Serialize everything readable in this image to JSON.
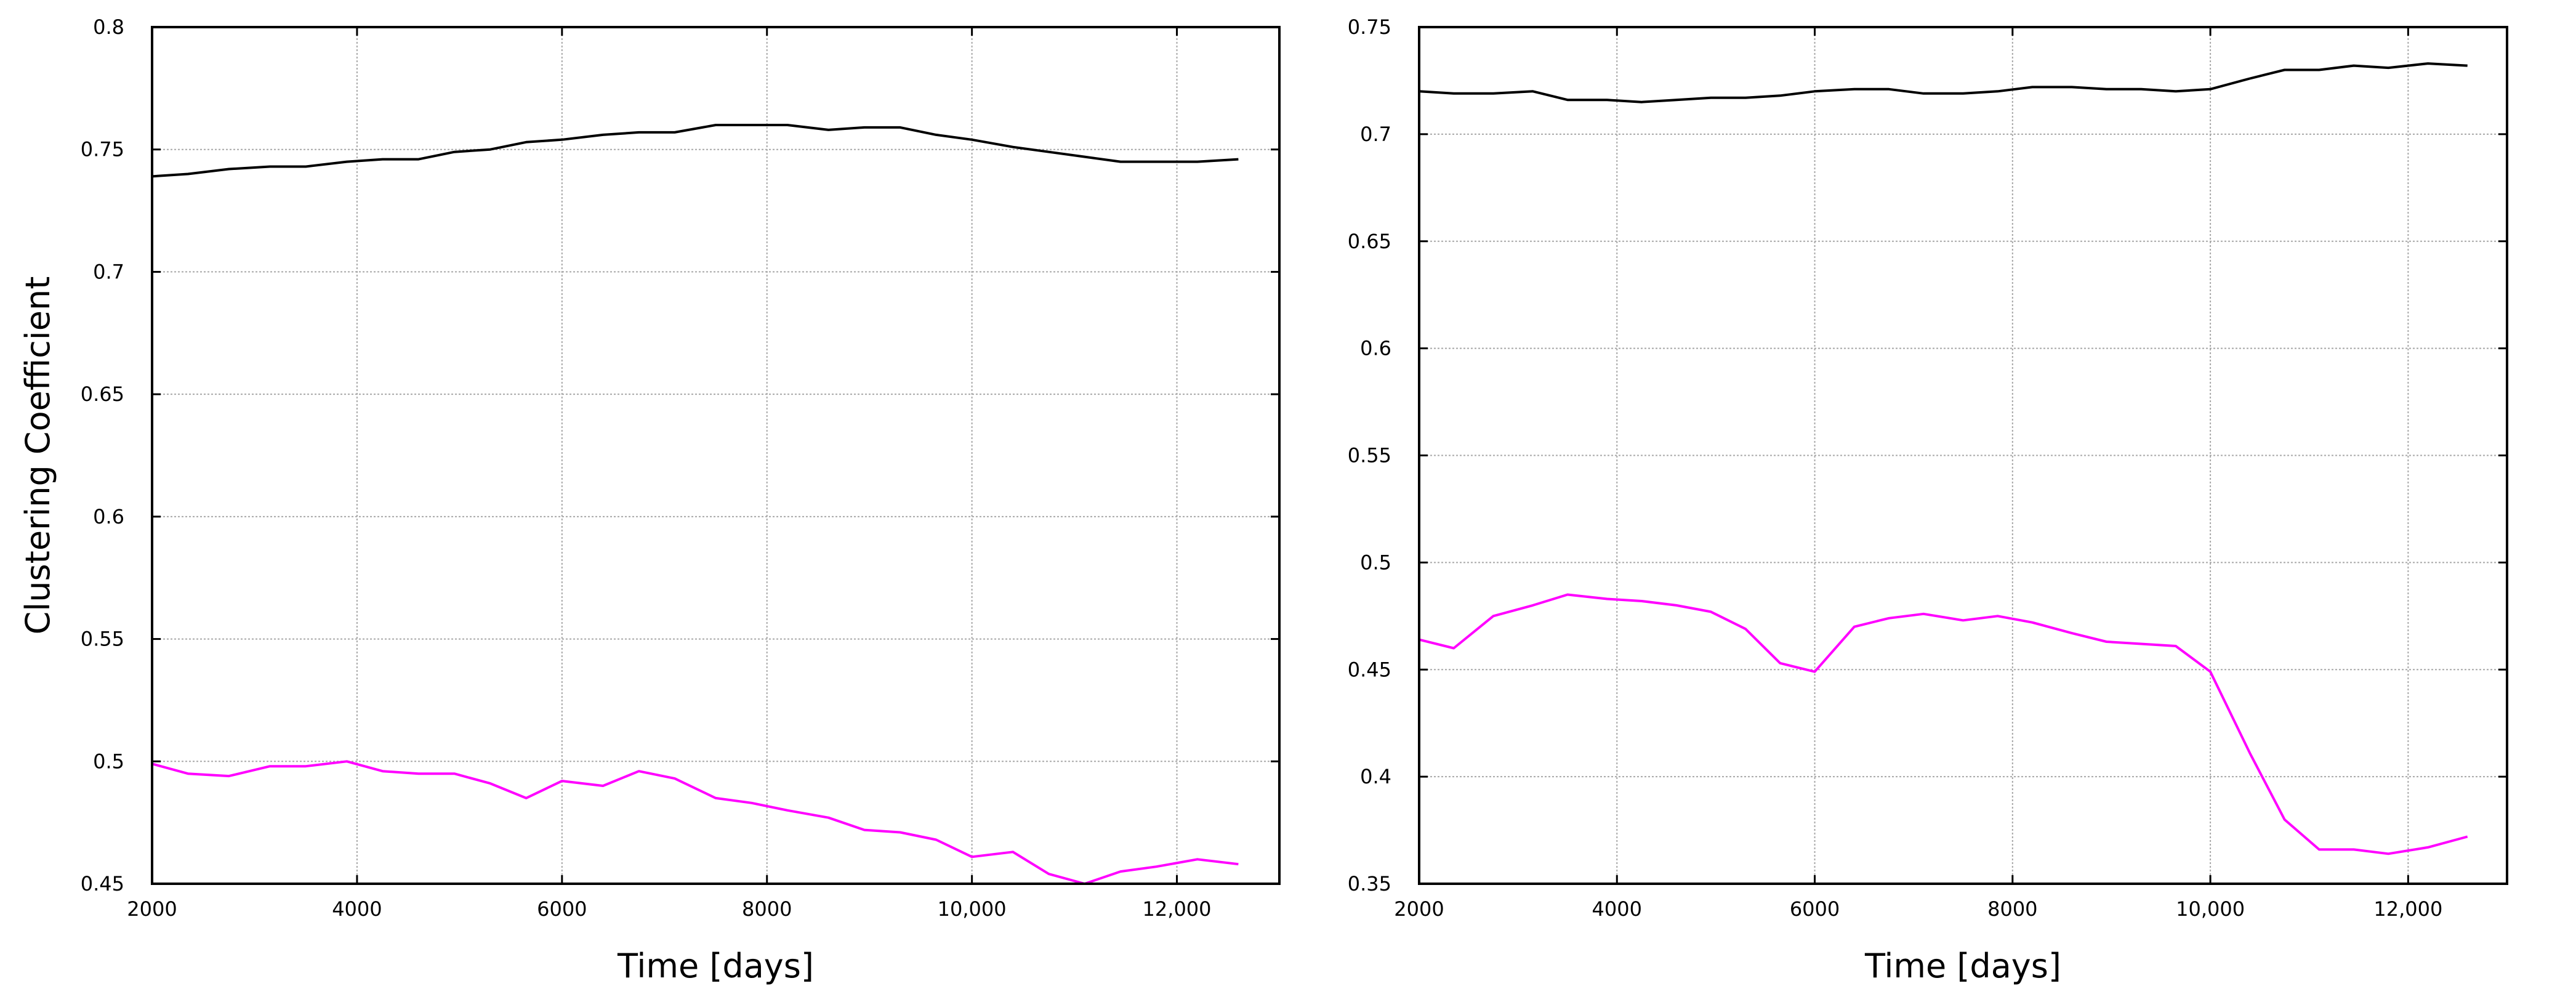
{
  "chart_data": [
    {
      "type": "line",
      "title": "",
      "xlabel": "Time [days]",
      "ylabel": "Clustering Coefficient",
      "xlim": [
        2000,
        13000
      ],
      "ylim": [
        0.45,
        0.8
      ],
      "xticks": [
        2000,
        4000,
        6000,
        8000,
        10000,
        12000
      ],
      "xtick_labels": [
        "2000",
        "4000",
        "6000",
        "8000",
        "10,000",
        "12,000"
      ],
      "yticks": [
        0.45,
        0.5,
        0.55,
        0.6,
        0.65,
        0.7,
        0.75,
        0.8
      ],
      "ytick_labels": [
        "0.45",
        "0.5",
        "0.55",
        "0.6",
        "0.65",
        "0.7",
        "0.75",
        "0.8"
      ],
      "grid": true,
      "legend": "none",
      "series": [
        {
          "color": "#000000",
          "x": [
            2000,
            2350,
            2750,
            3150,
            3500,
            3900,
            4250,
            4600,
            4950,
            5300,
            5650,
            6000,
            6400,
            6750,
            7100,
            7500,
            7850,
            8200,
            8600,
            8950,
            9300,
            9650,
            10000,
            10400,
            10750,
            11100,
            11450,
            11800,
            12200,
            12600
          ],
          "y": [
            0.739,
            0.74,
            0.742,
            0.743,
            0.743,
            0.745,
            0.746,
            0.746,
            0.749,
            0.75,
            0.753,
            0.754,
            0.756,
            0.757,
            0.757,
            0.76,
            0.76,
            0.76,
            0.758,
            0.759,
            0.759,
            0.756,
            0.754,
            0.751,
            0.749,
            0.747,
            0.745,
            0.745,
            0.745,
            0.746
          ]
        },
        {
          "color": "#ff00ff",
          "x": [
            2000,
            2350,
            2750,
            3150,
            3500,
            3900,
            4250,
            4600,
            4950,
            5300,
            5650,
            6000,
            6400,
            6750,
            7100,
            7500,
            7850,
            8200,
            8600,
            8950,
            9300,
            9650,
            10000,
            10400,
            10750,
            11100,
            11450,
            11800,
            12200,
            12600
          ],
          "y": [
            0.499,
            0.495,
            0.494,
            0.498,
            0.498,
            0.5,
            0.496,
            0.495,
            0.495,
            0.491,
            0.485,
            0.492,
            0.49,
            0.496,
            0.493,
            0.485,
            0.483,
            0.48,
            0.477,
            0.472,
            0.471,
            0.468,
            0.461,
            0.463,
            0.454,
            0.45,
            0.455,
            0.457,
            0.46,
            0.458
          ]
        }
      ]
    },
    {
      "type": "line",
      "title": "",
      "xlabel": "Time [days]",
      "ylabel": "",
      "xlim": [
        2000,
        13000
      ],
      "ylim": [
        0.35,
        0.75
      ],
      "xticks": [
        2000,
        4000,
        6000,
        8000,
        10000,
        12000
      ],
      "xtick_labels": [
        "2000",
        "4000",
        "6000",
        "8000",
        "10,000",
        "12,000"
      ],
      "yticks": [
        0.35,
        0.4,
        0.45,
        0.5,
        0.55,
        0.6,
        0.65,
        0.7,
        0.75
      ],
      "ytick_labels": [
        "0.35",
        "0.4",
        "0.45",
        "0.5",
        "0.55",
        "0.6",
        "0.65",
        "0.7",
        "0.75"
      ],
      "grid": true,
      "legend": "none",
      "series": [
        {
          "color": "#000000",
          "x": [
            2000,
            2350,
            2750,
            3150,
            3500,
            3900,
            4250,
            4600,
            4950,
            5300,
            5650,
            6000,
            6400,
            6750,
            7100,
            7500,
            7850,
            8200,
            8600,
            8950,
            9300,
            9650,
            10000,
            10400,
            10750,
            11100,
            11450,
            11800,
            12200,
            12600
          ],
          "y": [
            0.72,
            0.719,
            0.719,
            0.72,
            0.716,
            0.716,
            0.715,
            0.716,
            0.717,
            0.717,
            0.718,
            0.72,
            0.721,
            0.721,
            0.719,
            0.719,
            0.72,
            0.722,
            0.722,
            0.721,
            0.721,
            0.72,
            0.721,
            0.726,
            0.73,
            0.73,
            0.732,
            0.731,
            0.733,
            0.732
          ]
        },
        {
          "color": "#ff00ff",
          "x": [
            2000,
            2350,
            2750,
            3150,
            3500,
            3900,
            4250,
            4600,
            4950,
            5300,
            5650,
            6000,
            6400,
            6750,
            7100,
            7500,
            7850,
            8200,
            8600,
            8950,
            9300,
            9650,
            10000,
            10400,
            10750,
            11100,
            11450,
            11800,
            12200,
            12600
          ],
          "y": [
            0.464,
            0.46,
            0.475,
            0.48,
            0.485,
            0.483,
            0.482,
            0.48,
            0.477,
            0.469,
            0.453,
            0.449,
            0.47,
            0.474,
            0.476,
            0.473,
            0.475,
            0.472,
            0.467,
            0.463,
            0.462,
            0.461,
            0.449,
            0.411,
            0.38,
            0.366,
            0.366,
            0.364,
            0.367,
            0.372
          ]
        }
      ]
    }
  ]
}
